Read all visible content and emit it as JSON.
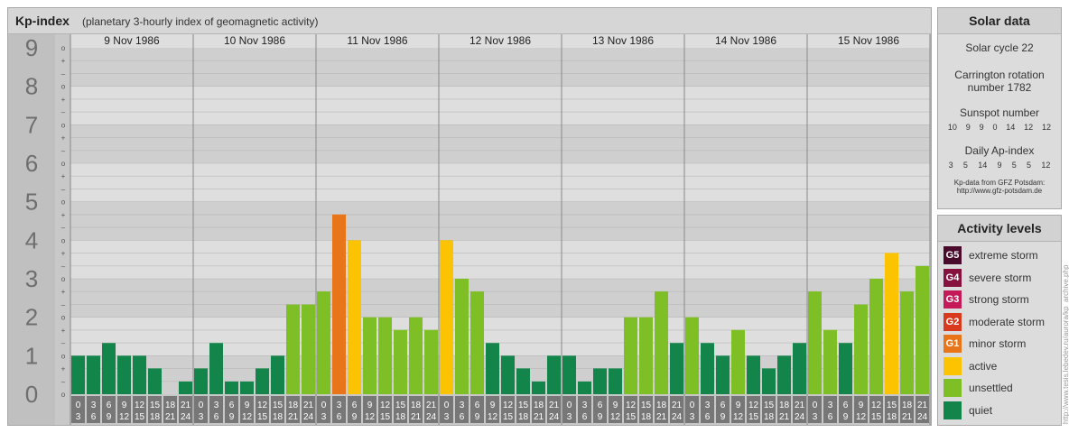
{
  "title": "Kp-index",
  "subtitle": "(planetary 3-hourly index of geomagnetic activity)",
  "chart_data": {
    "type": "bar",
    "ylim": [
      0,
      9
    ],
    "y_ticks": [
      "0",
      "1",
      "2",
      "3",
      "4",
      "5",
      "6",
      "7",
      "8",
      "9"
    ],
    "sub_ticks": [
      "o",
      "–",
      "+",
      "o",
      "–",
      "+",
      "o",
      "–",
      "+",
      "o",
      "–",
      "+",
      "o",
      "–",
      "+",
      "o",
      "–",
      "+",
      "o",
      "–",
      "+",
      "o",
      "–",
      "+",
      "o",
      "–",
      "+",
      "o"
    ],
    "days": [
      "9 Nov 1986",
      "10 Nov 1986",
      "11 Nov 1986",
      "12 Nov 1986",
      "13 Nov 1986",
      "14 Nov 1986",
      "15 Nov 1986"
    ],
    "hour_start": [
      "0",
      "3",
      "6",
      "9",
      "12",
      "15",
      "18",
      "21"
    ],
    "hour_end": [
      "3",
      "6",
      "9",
      "12",
      "15",
      "18",
      "21",
      "24"
    ],
    "values": [
      [
        1.0,
        1.0,
        1.33,
        1.0,
        1.0,
        0.67,
        0.0,
        0.33
      ],
      [
        0.67,
        1.33,
        0.33,
        0.33,
        0.67,
        1.0,
        2.33,
        2.33
      ],
      [
        2.67,
        4.67,
        4.0,
        2.0,
        2.0,
        1.67,
        2.0,
        1.67
      ],
      [
        4.0,
        3.0,
        2.67,
        1.33,
        1.0,
        0.67,
        0.33,
        1.0
      ],
      [
        1.0,
        0.33,
        0.67,
        0.67,
        2.0,
        2.0,
        2.67,
        1.33
      ],
      [
        2.0,
        1.33,
        1.0,
        1.67,
        1.0,
        0.67,
        1.0,
        1.33
      ],
      [
        2.67,
        1.67,
        1.33,
        2.33,
        3.0,
        3.67,
        2.67,
        3.33
      ]
    ],
    "colors": {
      "quiet": "#13854a",
      "unsettled": "#7ebf26",
      "active": "#fcc400",
      "minor": "#e8751a"
    }
  },
  "solar": {
    "title": "Solar data",
    "cycle": "Solar cycle 22",
    "carrington_1": "Carrington rotation",
    "carrington_2": "number 1782",
    "sunspot_title": "Sunspot number",
    "sunspot": [
      "10",
      "9",
      "9",
      "0",
      "14",
      "12",
      "12"
    ],
    "ap_title": "Daily Ap-index",
    "ap": [
      "3",
      "5",
      "14",
      "9",
      "5",
      "5",
      "12"
    ],
    "credit_1": "Kp-data from GFZ Potsdam:",
    "credit_2": "http://www.gfz-potsdam.de"
  },
  "activity": {
    "title": "Activity levels",
    "levels": [
      {
        "badge": "G5",
        "label": "extreme storm",
        "color": "#4a0a2c"
      },
      {
        "badge": "G4",
        "label": "severe storm",
        "color": "#86113e"
      },
      {
        "badge": "G3",
        "label": "strong storm",
        "color": "#c41a5a"
      },
      {
        "badge": "G2",
        "label": "moderate storm",
        "color": "#d93a1e"
      },
      {
        "badge": "G1",
        "label": "minor storm",
        "color": "#e8751a"
      },
      {
        "badge": "",
        "label": "active",
        "color": "#fcc400"
      },
      {
        "badge": "",
        "label": "unsettled",
        "color": "#7ebf26"
      },
      {
        "badge": "",
        "label": "quiet",
        "color": "#13854a"
      }
    ]
  },
  "side_text": "http://www.tesis.lebedev.ru/aurora/kp_archive.php"
}
